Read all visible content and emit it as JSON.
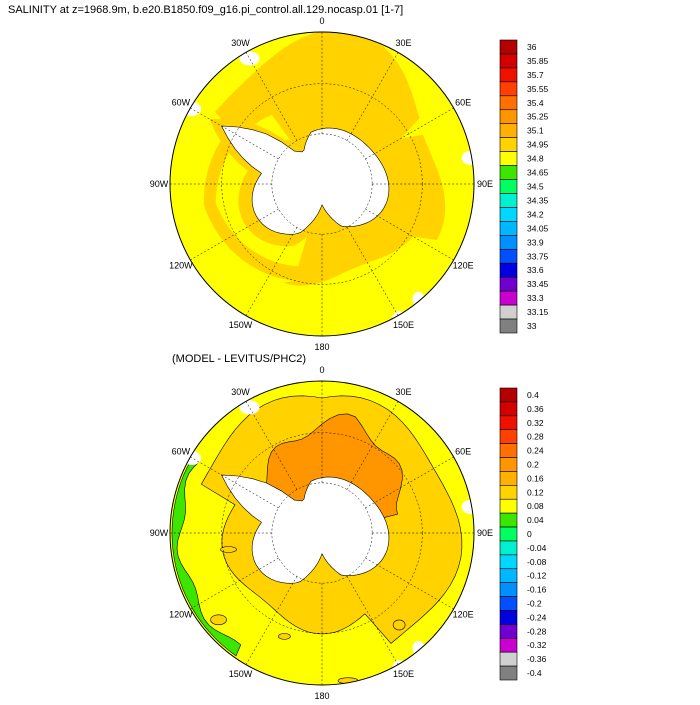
{
  "palette": {
    "land": "#ffffff",
    "missing": "#ffffff",
    "contour": "#000000",
    "grid": "#000000"
  },
  "chart_data": [
    {
      "type": "heatmap",
      "projection": "south-polar-stereographic",
      "title": "SALINITY at z=1968.9m, b.e20.B1850.f09_g16.pi_control.all.129.nocasp.01 [1-7]",
      "lon_labels": [
        "0",
        "30E",
        "60E",
        "90E",
        "120E",
        "150E",
        "180",
        "150W",
        "120W",
        "90W",
        "60W",
        "30W"
      ],
      "colorbar": {
        "labels": [
          "36",
          "35.85",
          "35.7",
          "35.55",
          "35.4",
          "35.25",
          "35.1",
          "34.95",
          "34.8",
          "34.65",
          "34.5",
          "34.35",
          "34.2",
          "34.05",
          "33.9",
          "33.75",
          "33.6",
          "33.45",
          "33.3",
          "33.15",
          "33"
        ],
        "colors": [
          "#b40000",
          "#d40000",
          "#f01000",
          "#ff4000",
          "#ff7000",
          "#ff9600",
          "#ffb000",
          "#ffd200",
          "#ffff00",
          "#3ce600",
          "#00ff60",
          "#00f0d0",
          "#00d8ff",
          "#00b8ff",
          "#0090ff",
          "#0050ff",
          "#0000e0",
          "#7000d0",
          "#c800d0",
          "#d0d0d0",
          "#808080"
        ]
      },
      "dominant_fields": {
        "shelf_band": 34.87,
        "interior": 34.72,
        "coastal_ring": 34.87
      }
    },
    {
      "type": "heatmap",
      "projection": "south-polar-stereographic",
      "title": "(MODEL - LEVITUS/PHC2)",
      "lon_labels": [
        "0",
        "30E",
        "60E",
        "90E",
        "120E",
        "150E",
        "180",
        "150W",
        "120W",
        "90W",
        "60W",
        "30W"
      ],
      "colorbar": {
        "labels": [
          "0.4",
          "0.36",
          "0.32",
          "0.28",
          "0.24",
          "0.2",
          "0.16",
          "0.12",
          "0.08",
          "0.04",
          "0",
          "-0.04",
          "-0.08",
          "-0.12",
          "-0.16",
          "-0.2",
          "-0.24",
          "-0.28",
          "-0.32",
          "-0.36",
          "-0.4"
        ],
        "colors": [
          "#b40000",
          "#d40000",
          "#f01000",
          "#ff4000",
          "#ff7000",
          "#ff9600",
          "#ffb000",
          "#ffd200",
          "#ffff00",
          "#3ce600",
          "#00ff60",
          "#00f0d0",
          "#00d8ff",
          "#00b8ff",
          "#0090ff",
          "#0050ff",
          "#0000e0",
          "#7000d0",
          "#c800d0",
          "#d0d0d0",
          "#808080"
        ]
      },
      "dominant_fields": {
        "atlantic_indian_sector": 0.18,
        "ring": 0.1,
        "pacific_sector": 0.06,
        "east_pacific_edge": 0.02
      }
    }
  ]
}
